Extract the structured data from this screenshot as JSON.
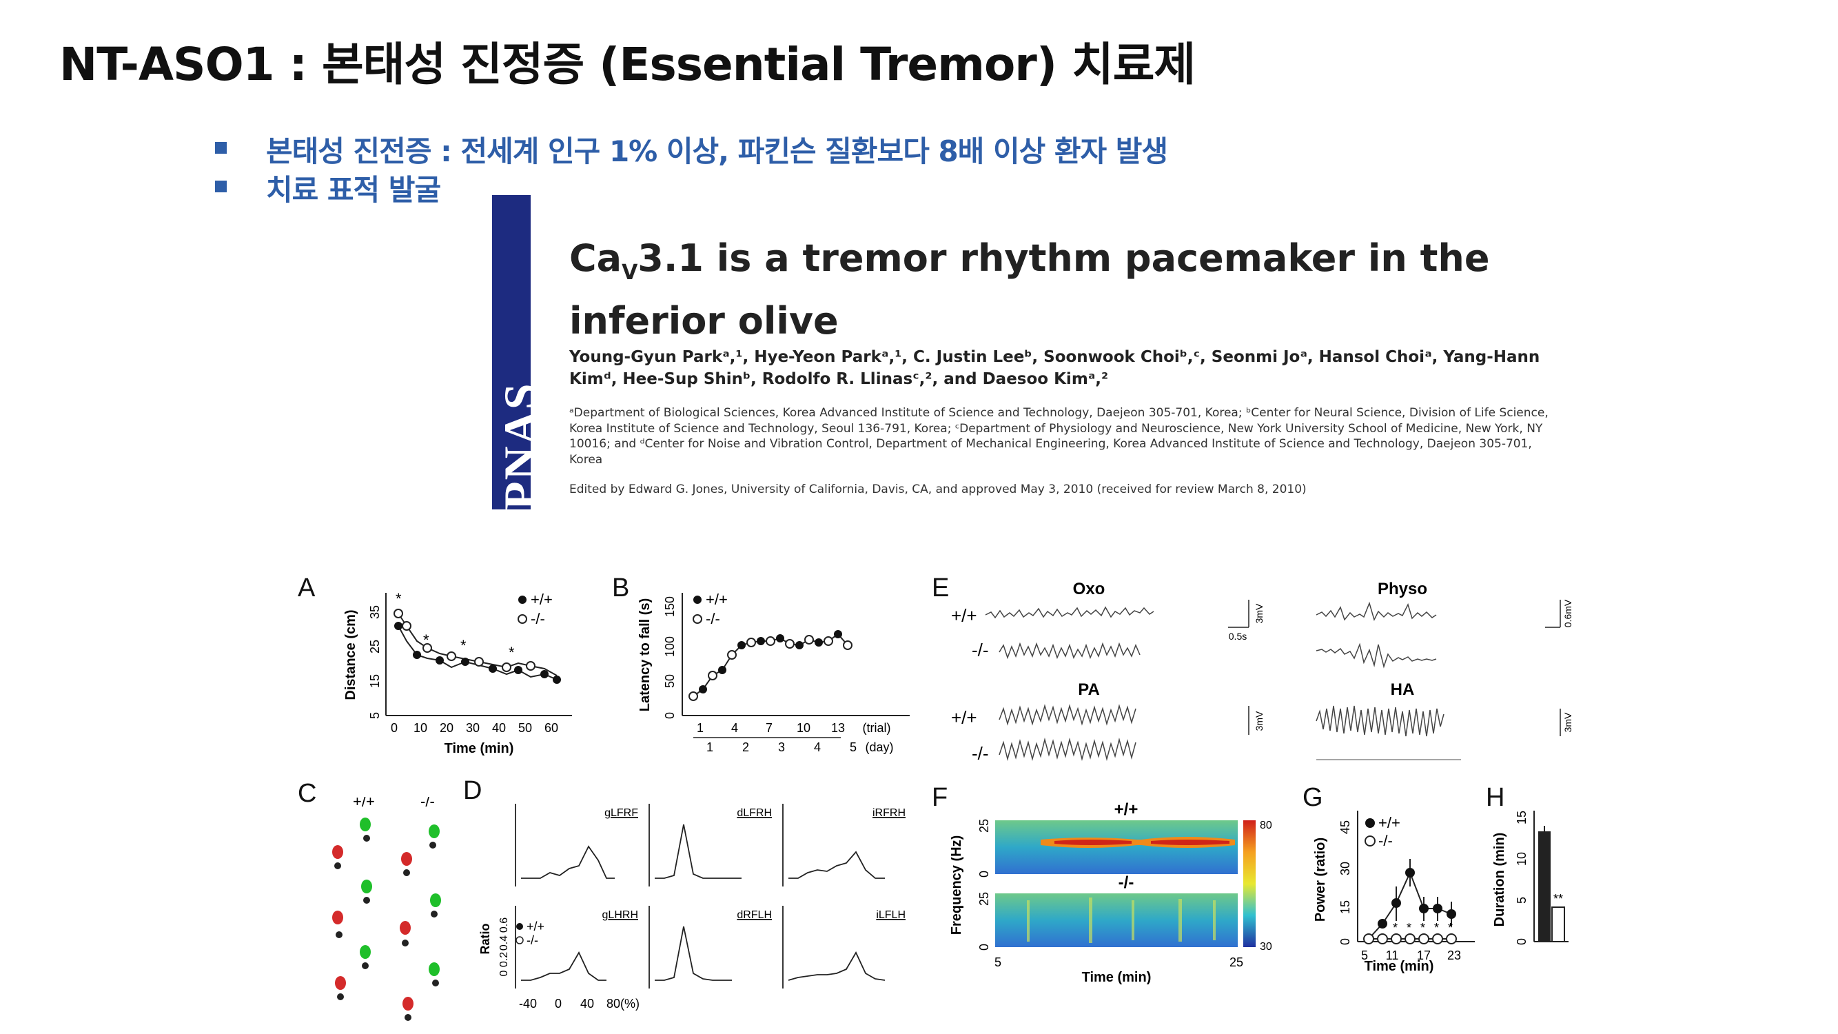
{
  "slide": {
    "title": "NT-ASO1 : 본태성 진정증 (Essential Tremor) 치료제",
    "bullets": [
      "본태성 진전증 : 전세계 인구 1% 이상, 파킨슨 질환보다 8배 이상 환자 발생",
      "치료 표적 발굴"
    ]
  },
  "paper": {
    "journal": "PNAS",
    "title_pre": "Ca",
    "title_sub": "V",
    "title_post": "3.1 is a tremor rhythm pacemaker in the inferior olive",
    "authors": "Young-Gyun Parkᵃ,¹, Hye-Yeon Parkᵃ,¹, C. Justin Leeᵇ, Soonwook Choiᵇ,ᶜ, Seonmi Joᵃ, Hansol Choiᵃ, Yang-Hann Kimᵈ, Hee-Sup Shinᵇ, Rodolfo R. Llinasᶜ,², and Daesoo Kimᵃ,²",
    "affiliations": "ᵃDepartment of Biological Sciences, Korea Advanced Institute of Science and Technology, Daejeon 305-701, Korea; ᵇCenter for Neural Science, Division of Life Science, Korea Institute of Science and Technology, Seoul 136-791, Korea; ᶜDepartment of Physiology and Neuroscience, New York University School of Medicine, New York, NY 10016; and ᵈCenter for Noise and Vibration Control, Department of Mechanical Engineering, Korea Advanced Institute of Science and Technology, Daejeon 305-701, Korea",
    "edited": "Edited by Edward G. Jones, University of California, Davis, CA, and approved May 3, 2010 (received for review March 8, 2010)"
  },
  "figure": {
    "panel_labels": [
      "A",
      "B",
      "C",
      "D",
      "E",
      "F",
      "G",
      "H"
    ],
    "legend_wt": "+/+",
    "legend_ko": "-/-",
    "A": {
      "ylabel": "Distance (cm)",
      "xlabel": "Time (min)",
      "yticks": [
        "5",
        "15",
        "25",
        "35"
      ],
      "xticks": [
        "0",
        "10",
        "20",
        "30",
        "40",
        "50",
        "60"
      ]
    },
    "B": {
      "ylabel": "Latency to fall (s)",
      "yticks": [
        "0",
        "50",
        "100",
        "150"
      ],
      "trial_ticks": [
        "1",
        "4",
        "7",
        "10",
        "13"
      ],
      "trial_unit": "(trial)",
      "day_ticks": [
        "1",
        "2",
        "3",
        "4",
        "5"
      ],
      "day_unit": "(day)"
    },
    "D": {
      "ylabel": "Ratio",
      "yticks": [
        "0",
        "0.2",
        "0.4",
        "0.6"
      ],
      "xticks": [
        "-40",
        "0",
        "40",
        "80(%)"
      ],
      "subpanels": [
        "gLFRF",
        "dLFRH",
        "iRFRH",
        "gLHRH",
        "dRFLH",
        "iLFLH"
      ]
    },
    "E": {
      "titles": [
        "Oxo",
        "Physo",
        "PA",
        "HA"
      ],
      "scale_mv": "3mV",
      "scale_mv2": "0.6mV",
      "scale_time": "0.5s"
    },
    "F": {
      "ylabel": "Frequency (Hz)",
      "xlabel": "Time (min)",
      "yticks": [
        "0",
        "25"
      ],
      "xticks": [
        "5",
        "25"
      ],
      "colorbar": [
        "80",
        "30"
      ]
    },
    "G": {
      "ylabel": "Power (ratio)",
      "xlabel": "Time (min)",
      "yticks": [
        "0",
        "15",
        "30",
        "45"
      ],
      "xticks": [
        "5",
        "11",
        "17",
        "23"
      ]
    },
    "H": {
      "ylabel": "Duration (min)",
      "yticks": [
        "0",
        "5",
        "10",
        "15"
      ],
      "sig": "**"
    }
  },
  "colors": {
    "bullet_blue": "#2e5ea8",
    "pnas_navy": "#1d2b80"
  }
}
